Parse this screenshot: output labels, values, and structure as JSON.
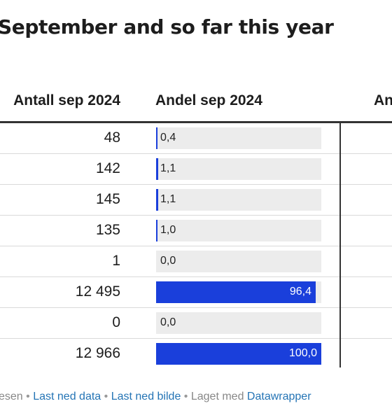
{
  "title": "September and so far this year",
  "columns": {
    "count_header": "Antall sep 2024",
    "share_header": "Andel sep 2024",
    "next_header": "An"
  },
  "rows": [
    {
      "count": "48",
      "share_label": "0,4",
      "share": 0.4
    },
    {
      "count": "142",
      "share_label": "1,1",
      "share": 1.1
    },
    {
      "count": "145",
      "share_label": "1,1",
      "share": 1.1
    },
    {
      "count": "135",
      "share_label": "1,0",
      "share": 1.0
    },
    {
      "count": "1",
      "share_label": "0,0",
      "share": 0.0
    },
    {
      "count": "12 495",
      "share_label": "96,4",
      "share": 96.4
    },
    {
      "count": "0",
      "share_label": "0,0",
      "share": 0.0
    },
    {
      "count": "12 966",
      "share_label": "100,0",
      "share": 100.0
    }
  ],
  "share_max": 100,
  "footer": {
    "source_fragment": "esen",
    "sep": "•",
    "download_data": "Last ned data",
    "download_image": "Last ned bilde",
    "made_with": "Laget med",
    "datawrapper": "Datawrapper"
  },
  "colors": {
    "bar": "#1a3fdb",
    "track": "#ececec",
    "link": "#2474b5"
  }
}
